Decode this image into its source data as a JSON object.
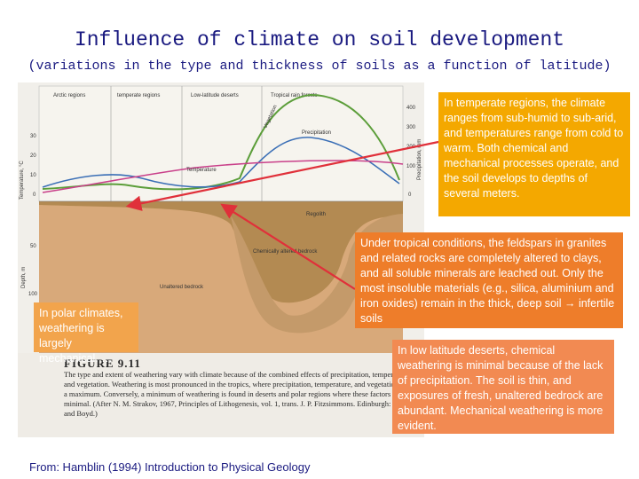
{
  "slide": {
    "title": "Influence of climate on soil development",
    "subtitle": "(variations in the type and thickness of soils as a function of latitude)",
    "source": "From: Hamblin (1994) Introduction to Physical Geology"
  },
  "figure": {
    "region_labels": [
      "Arctic regions",
      "temperate regions",
      "Low-latitude deserts",
      "Tropical rain forests"
    ],
    "curve_labels": [
      "Vegetation",
      "Precipitation",
      "Temperature"
    ],
    "zone_labels": [
      "Regolith",
      "Chemically altered bedrock",
      "Unaltered bedrock"
    ],
    "left_axis_top": "Temperature, °C",
    "left_axis_bottom": "Depth, m",
    "right_axis": "Precipitation, mm",
    "left_ticks_top": [
      "30",
      "20",
      "10",
      "0"
    ],
    "left_ticks_bottom": [
      "50",
      "100"
    ],
    "right_ticks": [
      "400",
      "300",
      "200",
      "100",
      "0"
    ],
    "caption_head": "FIGURE 9.11",
    "caption_text": "The type and extent of weathering vary with climate because of the combined effects of precipitation, temperature, and vegetation. Weathering is most pronounced in the tropics, where precipitation, temperature, and vegetation reach a maximum. Conversely, a minimum of weathering is found in deserts and polar regions where these factors are minimal. (After N. M. Strakov, 1967, Principles of Lithogenesis, vol. 1, trans. J. P. Fitzsimmons. Edinburgh: Oliver and Boyd.)"
  },
  "callouts": {
    "temperate": "In temperate regions, the climate ranges from sub-humid to sub-arid, and temperatures range from cold to warm. Both chemical and mechanical processes operate, and the soil develops to depths of several meters.",
    "tropical": "Under tropical conditions, the feldspars in granites and related rocks are completely altered to clays, and all soluble minerals are leached out. Only the most insoluble materials (e.g., silica, aluminium and iron oxides) remain in the thick, deep soil → infertile soils",
    "desert": "In low latitude deserts, chemical weathering is minimal because of the lack of precipitation. The soil is thin, and exposures of fresh, unaltered bedrock are abundant. Mechanical weathering is more evident.",
    "polar": "In polar climates, weathering is largely mechanical. …"
  },
  "colors": {
    "title": "#1a1a80",
    "arrow": "#e0303a",
    "box_temperate": "#f4a800",
    "box_tropical": "#ee7d2a",
    "box_desert": "#f28a52"
  }
}
